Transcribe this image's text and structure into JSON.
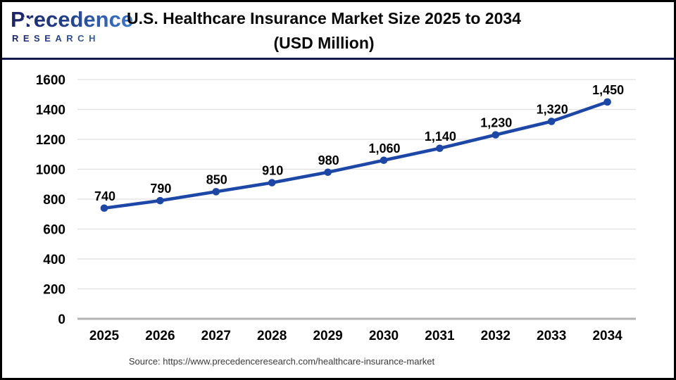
{
  "logo": {
    "name": "Precedence",
    "subtitle": "RESEARCH"
  },
  "header": {
    "title_line1": "U.S. Healthcare Insurance Market Size 2025 to 2034",
    "title_line2": "(USD Million)"
  },
  "footer": {
    "source": "Source: https://www.precedenceresearch.com/healthcare-insurance-market"
  },
  "colors": {
    "line": "#1d47a6",
    "marker": "#1d47a6",
    "grid": "#e0e0e0",
    "zero_axis": "#b3b3b3",
    "tick_label": "#000000",
    "data_label": "#000000",
    "separator_navy": "#10194a",
    "logo_navy": "#1b2364",
    "logo_blue": "#3d7cd3"
  },
  "chart_data": {
    "type": "line",
    "title": "U.S. Healthcare Insurance Market Size 2025 to 2034 (USD Million)",
    "categories": [
      "2025",
      "2026",
      "2027",
      "2028",
      "2029",
      "2030",
      "2031",
      "2032",
      "2033",
      "2034"
    ],
    "series": [
      {
        "name": "U.S. Healthcare Insurance Market Size (USD Million)",
        "values": [
          740,
          790,
          850,
          910,
          980,
          1060,
          1140,
          1230,
          1320,
          1450
        ]
      }
    ],
    "data_labels": [
      "740",
      "790",
      "850",
      "910",
      "980",
      "1,060",
      "1,140",
      "1,230",
      "1,320",
      "1,450"
    ],
    "xlabel": "",
    "ylabel": "",
    "ylim": [
      0,
      1600
    ],
    "ytick_interval": 200,
    "ytick_labels": [
      "0",
      "200",
      "400",
      "600",
      "800",
      "1000",
      "1200",
      "1400",
      "1600"
    ],
    "grid": true,
    "legend_position": "none"
  }
}
